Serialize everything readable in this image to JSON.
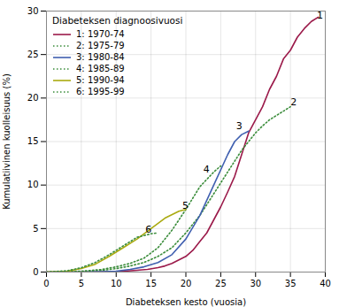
{
  "chart_data": {
    "type": "line",
    "title": "Diabeteksen diagnoosivuosi",
    "xlabel": "Diabeteksen kesto (vuosia)",
    "ylabel": "Kumulatiivinen kuolleisuus (%)",
    "xlim": [
      0,
      40
    ],
    "ylim": [
      0,
      30
    ],
    "xticks": [
      0,
      5,
      10,
      15,
      20,
      25,
      30,
      35,
      40
    ],
    "yticks": [
      0,
      5,
      10,
      15,
      20,
      25,
      30
    ],
    "grid": true,
    "legend": "upper left",
    "series": [
      {
        "name": "1: 1970-74",
        "color": "#9b1a4a",
        "line_style": "solid",
        "x": [
          0,
          6,
          9,
          11,
          13,
          14.5,
          16,
          17,
          18,
          19,
          20,
          21,
          22,
          23,
          24,
          25,
          26,
          27,
          28,
          29,
          30,
          31,
          32,
          33,
          34,
          35,
          36,
          37,
          38,
          39
        ],
        "values": [
          0,
          0,
          0.05,
          0.1,
          0.2,
          0.3,
          0.5,
          0.7,
          1.0,
          1.4,
          1.8,
          2.5,
          3.5,
          4.5,
          6.0,
          7.5,
          9.2,
          11.0,
          13.5,
          16.0,
          17.5,
          19.0,
          21.0,
          22.5,
          24.5,
          25.5,
          27.0,
          28.0,
          28.8,
          29.3
        ]
      },
      {
        "name": "2: 1975-79",
        "color": "#3a8c3a",
        "line_style": "dotted",
        "x": [
          0,
          5,
          8,
          10,
          12,
          14,
          16,
          18,
          20,
          22,
          24,
          26,
          28,
          29,
          30,
          31,
          32,
          33,
          34,
          35
        ],
        "values": [
          0,
          0.05,
          0.2,
          0.4,
          0.7,
          1.1,
          1.8,
          2.8,
          4.5,
          6.5,
          9.0,
          11.5,
          14.0,
          15.0,
          16.0,
          16.8,
          17.5,
          18.0,
          18.5,
          19.0
        ]
      },
      {
        "name": "3: 1980-84",
        "color": "#4060b0",
        "line_style": "solid",
        "x": [
          0,
          5,
          8,
          10,
          12,
          14,
          16,
          18,
          20,
          22,
          24,
          26,
          27,
          28,
          29
        ],
        "values": [
          0,
          0.0,
          0.05,
          0.1,
          0.3,
          0.6,
          1.1,
          2.0,
          3.8,
          6.5,
          10.0,
          13.5,
          15.0,
          15.8,
          16.2
        ]
      },
      {
        "name": "4: 1985-89",
        "color": "#3a8c3a",
        "line_style": "dotted",
        "x": [
          0,
          5,
          8,
          10,
          12,
          14,
          16,
          18,
          20,
          22,
          24,
          25
        ],
        "values": [
          0,
          0.1,
          0.3,
          0.6,
          1.0,
          1.6,
          2.8,
          4.8,
          7.2,
          9.8,
          11.5,
          12.2
        ]
      },
      {
        "name": "5: 1990-94",
        "color": "#aaaa10",
        "line_style": "solid",
        "x": [
          0,
          3,
          5,
          7,
          9,
          11,
          13,
          15,
          17,
          19,
          20
        ],
        "values": [
          0,
          0.1,
          0.4,
          0.9,
          1.8,
          2.8,
          3.8,
          5.0,
          6.2,
          7.0,
          7.2
        ]
      },
      {
        "name": "6: 1995-99",
        "color": "#3a8c3a",
        "line_style": "dotted",
        "x": [
          0,
          3,
          5,
          7,
          9,
          11,
          13,
          15,
          16
        ],
        "values": [
          0,
          0.15,
          0.5,
          1.1,
          2.0,
          3.0,
          4.0,
          4.4,
          4.5
        ]
      }
    ],
    "annotations": [
      {
        "text": "1",
        "x": 38.8,
        "y": 29.5
      },
      {
        "text": "2",
        "x": 35.0,
        "y": 19.5
      },
      {
        "text": "3",
        "x": 27.2,
        "y": 16.8
      },
      {
        "text": "4",
        "x": 22.5,
        "y": 11.8
      },
      {
        "text": "5",
        "x": 19.5,
        "y": 7.6
      },
      {
        "text": "6",
        "x": 14.2,
        "y": 4.9
      }
    ]
  }
}
